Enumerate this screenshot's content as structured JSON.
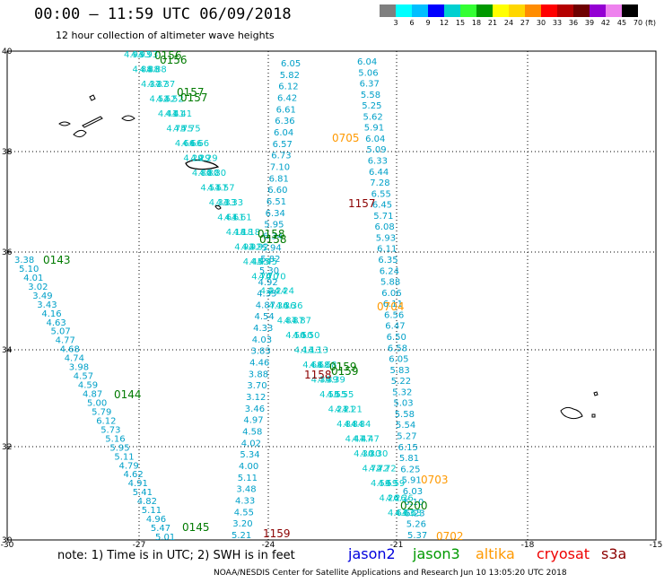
{
  "title": "00:00 — 11:59 UTC 06/09/2018",
  "subtitle": "12 hour collection of altimeter wave heights",
  "legend": {
    "unit": "(ft)",
    "colors": [
      "#7f7f7f",
      "#00ffff",
      "#00bfff",
      "#0000ff",
      "#00d0d0",
      "#33ff33",
      "#009900",
      "#ffff00",
      "#ffd700",
      "#ff8c00",
      "#ff0000",
      "#b40000",
      "#6e0000",
      "#9400d3",
      "#ee82ee",
      "#000000"
    ],
    "labels": [
      "3",
      "6",
      "9",
      "12",
      "15",
      "18",
      "21",
      "24",
      "27",
      "30",
      "33",
      "36",
      "39",
      "42",
      "45",
      "70"
    ]
  },
  "axes": {
    "lat_labels": [
      "40",
      "38",
      "36",
      "34",
      "32",
      "30"
    ],
    "lon_labels": [
      "-30",
      "-27",
      "-24",
      "-21",
      "-18",
      "-15"
    ]
  },
  "pass_labels": [
    {
      "text": "0156",
      "color": "#007a00"
    },
    {
      "text": "0156",
      "color": "#007a00"
    },
    {
      "text": "0157",
      "color": "#007a00"
    },
    {
      "text": "0157",
      "color": "#007a00"
    },
    {
      "text": "0158",
      "color": "#007a00"
    },
    {
      "text": "0158",
      "color": "#007a00"
    },
    {
      "text": "0159",
      "color": "#007a00"
    },
    {
      "text": "0159",
      "color": "#007a00"
    },
    {
      "text": "0143",
      "color": "#007a00"
    },
    {
      "text": "0144",
      "color": "#007a00"
    },
    {
      "text": "0145",
      "color": "#007a00"
    },
    {
      "text": "0200",
      "color": "#007a00"
    },
    {
      "text": "0705",
      "color": "#ff9900"
    },
    {
      "text": "0704",
      "color": "#ff9900"
    },
    {
      "text": "0703",
      "color": "#ff9900"
    },
    {
      "text": "0702",
      "color": "#ff9900"
    },
    {
      "text": "1157",
      "color": "#8b0000"
    },
    {
      "text": "1158",
      "color": "#8b0000"
    },
    {
      "text": "1159",
      "color": "#8b0000"
    }
  ],
  "track_a": [
    "6.05",
    "5.82",
    "6.12",
    "6.42",
    "6.61",
    "6.36",
    "6.04",
    "6.57",
    "6.73",
    "7.10",
    "6.81",
    "6.60",
    "6.51",
    "6.34",
    "5.95",
    "6.34",
    "5.94",
    "5.82",
    "5.30",
    "4.92",
    "4.35",
    "4.87",
    "4.54",
    "4.33",
    "4.03",
    "3.83",
    "4.46",
    "3.88",
    "3.70",
    "3.12",
    "3.46",
    "4.97",
    "4.58",
    "4.02",
    "5.34",
    "4.00",
    "5.11",
    "3.48",
    "4.33",
    "4.55",
    "3.20",
    "5.21"
  ],
  "track_b": [
    "6.04",
    "5.06",
    "6.37",
    "5.58",
    "5.25",
    "5.62",
    "5.91",
    "6.04",
    "5.09",
    "6.33",
    "6.44",
    "7.28",
    "6.55",
    "6.45",
    "5.71",
    "6.08",
    "5.93",
    "6.11",
    "6.35",
    "6.24",
    "5.88",
    "6.06",
    "6.11",
    "6.56",
    "6.47",
    "6.50",
    "6.58",
    "6.05",
    "5.83",
    "5.22",
    "5.32",
    "5.03",
    "5.58",
    "5.54",
    "5.27",
    "6.15",
    "5.81",
    "6.25",
    "5.91",
    "6.03",
    "6.10",
    "5.23",
    "5.26",
    "5.37"
  ],
  "track_c": [
    "3.38",
    "5.10",
    "4.01",
    "3.02",
    "3.49",
    "3.43",
    "4.16",
    "4.63",
    "5.07",
    "4.77",
    "4.68",
    "4.74",
    "3.98",
    "4.57",
    "4.59",
    "4.87",
    "5.00",
    "5.79",
    "6.12",
    "5.73",
    "5.16",
    "5.95",
    "5.11",
    "4.79",
    "4.62",
    "4.91",
    "5.41",
    "4.82",
    "5.11",
    "4.96",
    "5.47",
    "5.01"
  ],
  "track_d": [
    "4.93",
    "4.88",
    "4.37",
    "4.52",
    "4.41",
    "4.75",
    "4.66",
    "4.29",
    "4.80",
    "4.57",
    "4.33",
    "4.61",
    "4.18",
    "4.92",
    "4.45",
    "4.70",
    "4.24",
    "4.36",
    "4.87",
    "4.50",
    "4.13",
    "4.68",
    "4.39",
    "4.55",
    "4.21",
    "4.84",
    "4.47",
    "4.30",
    "4.72",
    "4.59",
    "4.26",
    "4.63"
  ],
  "note": "note: 1) Time is in UTC; 2) SWH is in feet",
  "missions": [
    {
      "name": "jason2",
      "color": "#0000dd"
    },
    {
      "name": "jason3",
      "color": "#009900"
    },
    {
      "name": "altika",
      "color": "#ff9900"
    },
    {
      "name": "cryosat",
      "color": "#ee0000"
    },
    {
      "name": "s3a",
      "color": "#8b0000"
    }
  ],
  "credit": "NOAA/NESDIS Center for Satellite Applications and Research    Jun 10 13:05:20 UTC 2018"
}
